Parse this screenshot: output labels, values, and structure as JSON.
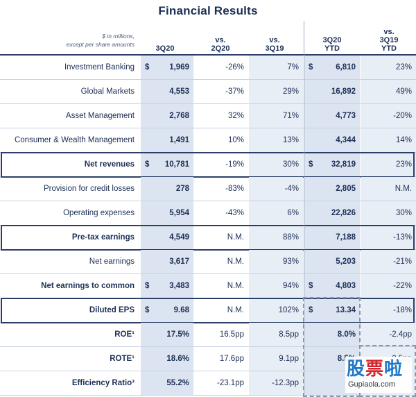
{
  "title": "Financial Results",
  "header": {
    "note_line1": "$ in millions,",
    "note_line2": "except per share amounts",
    "columns": [
      {
        "line1": "",
        "line2": "3Q20"
      },
      {
        "line1": "vs.",
        "line2": "2Q20"
      },
      {
        "line1": "vs.",
        "line2": "3Q19"
      },
      {
        "line1": "3Q20",
        "line2": "YTD"
      },
      {
        "line1": "vs.",
        "line2": "3Q19",
        "line3": "YTD"
      }
    ]
  },
  "rows": [
    {
      "label": "Investment Banking",
      "q3": "1,969",
      "vs2q": "-26%",
      "vs3q": "7%",
      "ytd": "6,810",
      "vsytd": "23%",
      "dollar_q3": "$",
      "dollar_ytd": "$"
    },
    {
      "label": "Global Markets",
      "q3": "4,553",
      "vs2q": "-37%",
      "vs3q": "29%",
      "ytd": "16,892",
      "vsytd": "49%"
    },
    {
      "label": "Asset Management",
      "q3": "2,768",
      "vs2q": "32%",
      "vs3q": "71%",
      "ytd": "4,773",
      "vsytd": "-20%"
    },
    {
      "label": "Consumer & Wealth Management",
      "q3": "1,491",
      "vs2q": "10%",
      "vs3q": "13%",
      "ytd": "4,344",
      "vsytd": "14%"
    },
    {
      "label": "Net revenues",
      "q3": "10,781",
      "vs2q": "-19%",
      "vs3q": "30%",
      "ytd": "32,819",
      "vsytd": "23%",
      "dollar_q3": "$",
      "dollar_ytd": "$"
    },
    {
      "label": "Provision for credit losses",
      "q3": "278",
      "vs2q": "-83%",
      "vs3q": "-4%",
      "ytd": "2,805",
      "vsytd": "N.M."
    },
    {
      "label": "Operating expenses",
      "q3": "5,954",
      "vs2q": "-43%",
      "vs3q": "6%",
      "ytd": "22,826",
      "vsytd": "30%"
    },
    {
      "label": "Pre-tax earnings",
      "q3": "4,549",
      "vs2q": "N.M.",
      "vs3q": "88%",
      "ytd": "7,188",
      "vsytd": "-13%"
    },
    {
      "label": "Net earnings",
      "q3": "3,617",
      "vs2q": "N.M.",
      "vs3q": "93%",
      "ytd": "5,203",
      "vsytd": "-21%"
    },
    {
      "label": "Net earnings to common",
      "q3": "3,483",
      "vs2q": "N.M.",
      "vs3q": "94%",
      "ytd": "4,803",
      "vsytd": "-22%",
      "dollar_q3": "$",
      "dollar_ytd": "$"
    },
    {
      "label": "Diluted EPS",
      "q3": "9.68",
      "vs2q": "N.M.",
      "vs3q": "102%",
      "ytd": "13.34",
      "vsytd": "-18%",
      "dollar_q3": "$",
      "dollar_ytd": "$"
    },
    {
      "label": "ROE¹",
      "q3": "17.5%",
      "vs2q": "16.5pp",
      "vs3q": "8.5pp",
      "ytd": "8.0%",
      "vsytd": "-2.4pp"
    },
    {
      "label": "ROTE¹",
      "q3": "18.6%",
      "vs2q": "17.6pp",
      "vs3q": "9.1pp",
      "ytd": "8.5%",
      "vsytd": "-2.5pp"
    },
    {
      "label": "Efficiency Ratio³",
      "q3": "55.2%",
      "vs2q": "-23.1pp",
      "vs3q": "-12.3pp",
      "ytd": "6",
      "vsytd": ""
    }
  ],
  "watermark": {
    "chars": [
      "股",
      "票",
      "啦"
    ],
    "url": "Gupiaola.com"
  }
}
